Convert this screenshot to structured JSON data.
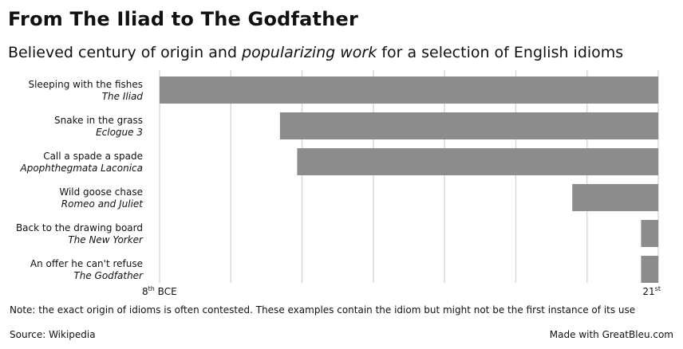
{
  "title": "From The Iliad to The Godfather",
  "subtitle": {
    "part1": "Believed century of origin and ",
    "emphasis": "popularizing work",
    "part2": " for a selection of English idioms"
  },
  "note": "Note: the exact origin of idioms is often contested. These examples contain the idiom but might not be the first instance of its use",
  "source": "Source: Wikipedia",
  "made_with": "Made with GreatBleu.com",
  "chart_data": {
    "type": "bar",
    "orientation": "horizontal",
    "bar_color": "#8c8c8c",
    "grid_color": "#d9d9d9",
    "xlim": [
      -8,
      21
    ],
    "x_ticks": [
      {
        "value": -8,
        "num": "8",
        "sup": "th",
        "suffix": " BCE"
      },
      {
        "value": 21,
        "num": "21",
        "sup": "st",
        "suffix": ""
      }
    ],
    "bars": [
      {
        "idiom": "Sleeping with the fishes",
        "work": "The Iliad",
        "start": -8,
        "end": 21
      },
      {
        "idiom": "Snake in the grass",
        "work": "Eclogue 3",
        "start": -1,
        "end": 21
      },
      {
        "idiom": "Call a spade a spade",
        "work": "Apophthegmata Laconica",
        "start": 0,
        "end": 21
      },
      {
        "idiom": "Wild goose chase",
        "work": "Romeo and Juliet",
        "start": 16,
        "end": 21
      },
      {
        "idiom": "Back to the drawing board",
        "work": "The New Yorker",
        "start": 20,
        "end": 21
      },
      {
        "idiom": "An offer he can't refuse",
        "work": "The Godfather",
        "start": 20,
        "end": 21
      }
    ]
  }
}
